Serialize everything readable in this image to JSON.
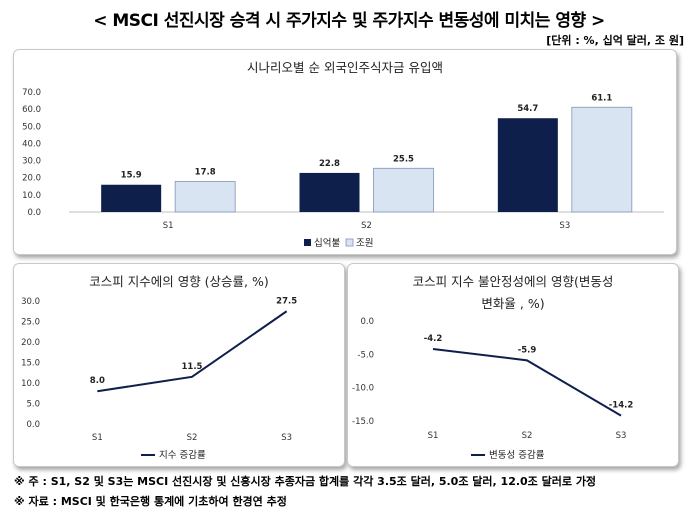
{
  "title": "< MSCI 선진시장 승격 시 주가지수 및 주가지수 변동성에 미치는 영향 >",
  "unit": "[단위 : %, 십억 달러, 조 원]",
  "notes": [
    "※ 주 : S1, S2 및 S3는 MSCI 선진시장 및 신흥시장 추종자금 합계를 각각 3.5조 달러, 5.0조 달러, 12.0조 달러로 가정",
    "※ 자료 : MSCI 및 한국은행 통계에 기초하여 한경연 추정"
  ],
  "chart_data": [
    {
      "type": "bar",
      "title": "시나리오별 순 외국인주식자금 유입액",
      "categories": [
        "S1",
        "S2",
        "S3"
      ],
      "series": [
        {
          "name": "십억불",
          "values": [
            15.9,
            22.8,
            54.7
          ],
          "color": "#0f1f4b"
        },
        {
          "name": "조원",
          "values": [
            17.8,
            25.5,
            61.1
          ],
          "color": "#d9e4f2"
        }
      ],
      "ylim": [
        0,
        70
      ],
      "yticks": [
        "0.0",
        "10.0",
        "20.0",
        "30.0",
        "40.0",
        "50.0",
        "60.0",
        "70.0"
      ],
      "legend": "bottom",
      "grid": false
    },
    {
      "type": "line",
      "title": "코스피 지수에의 영향 (상승률, %)",
      "categories": [
        "S1",
        "S2",
        "S3"
      ],
      "series": [
        {
          "name": "지수 증감률",
          "values": [
            8.0,
            11.5,
            27.5
          ],
          "color": "#0f1f4b"
        }
      ],
      "ylim": [
        0,
        30
      ],
      "yticks": [
        "0.0",
        "5.0",
        "10.0",
        "15.0",
        "20.0",
        "25.0",
        "30.0"
      ],
      "legend": "bottom",
      "grid": false
    },
    {
      "type": "line",
      "title": "코스피 지수 불안정성에의 영향(변동성 변화율 , %)",
      "title_lines": [
        "코스피 지수 불안정성에의 영향(변동성",
        "변화율 , %)"
      ],
      "categories": [
        "S1",
        "S2",
        "S3"
      ],
      "series": [
        {
          "name": "변동성 증감률",
          "values": [
            -4.2,
            -5.9,
            -14.2
          ],
          "color": "#0f1f4b"
        }
      ],
      "ylim": [
        -15,
        0
      ],
      "yticks": [
        "0.0",
        "-5.0",
        "-10.0",
        "-15.0"
      ],
      "legend": "bottom",
      "grid": false
    }
  ]
}
